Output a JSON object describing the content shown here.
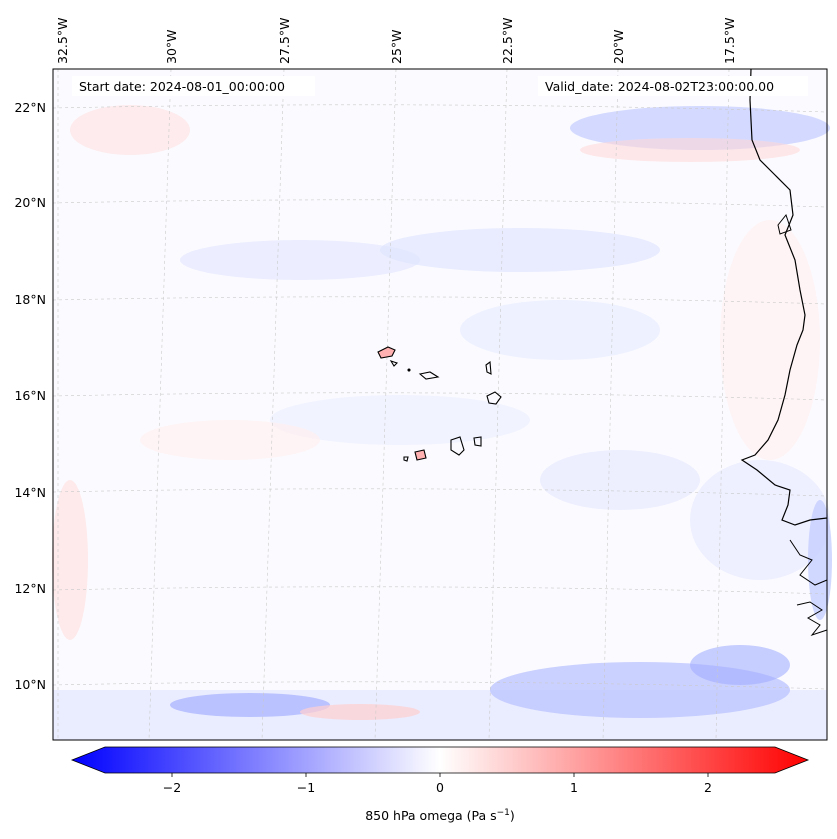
{
  "header": {
    "start_date": "Start date: 2024-08-01_00:00:00",
    "valid_date": "Valid_date: 2024-08-02T23:00:00.00"
  },
  "longitude_labels": [
    "32.5°W",
    "30°W",
    "27.5°W",
    "25°W",
    "22.5°W",
    "20°W",
    "17.5°W"
  ],
  "latitude_labels": [
    "22°N",
    "20°N",
    "18°N",
    "16°N",
    "14°N",
    "12°N",
    "10°N"
  ],
  "colorbar": {
    "ticks": [
      "−2",
      "−1",
      "0",
      "1",
      "2"
    ],
    "label": "850 hPa omega (Pa s",
    "label_sup": "−1",
    "label_close": ")",
    "min": -2.75,
    "max": 2.75,
    "colors": {
      "negative": "#0000ff",
      "zero": "#ffffff",
      "positive": "#ff0000"
    }
  }
}
